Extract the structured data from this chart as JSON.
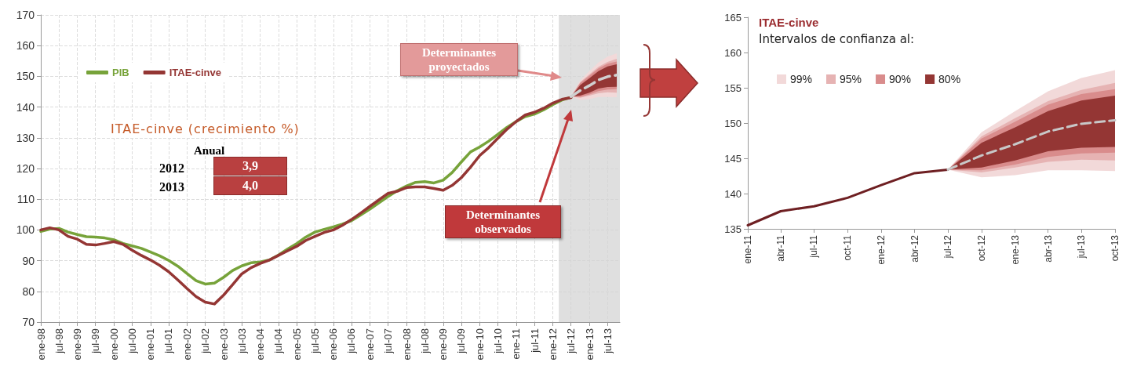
{
  "chart_data": [
    {
      "type": "line",
      "x": [
        "1998-01",
        "1998-04",
        "1998-07",
        "1998-10",
        "1999-01",
        "1999-04",
        "1999-07",
        "1999-10",
        "2000-01",
        "2000-04",
        "2000-07",
        "2000-10",
        "2001-01",
        "2001-04",
        "2001-07",
        "2001-10",
        "2002-01",
        "2002-04",
        "2002-07",
        "2002-10",
        "2003-01",
        "2003-04",
        "2003-07",
        "2003-10",
        "2004-01",
        "2004-04",
        "2004-07",
        "2004-10",
        "2005-01",
        "2005-04",
        "2005-07",
        "2005-10",
        "2006-01",
        "2006-04",
        "2006-07",
        "2006-10",
        "2007-01",
        "2007-04",
        "2007-07",
        "2007-10",
        "2008-01",
        "2008-04",
        "2008-07",
        "2008-10",
        "2009-01",
        "2009-04",
        "2009-07",
        "2009-10",
        "2010-01",
        "2010-04",
        "2010-07",
        "2010-10",
        "2011-01",
        "2011-04",
        "2011-07",
        "2011-10",
        "2012-01",
        "2012-04",
        "2012-07"
      ],
      "series": [
        {
          "name": "PIB",
          "color": "#77a33a",
          "values": [
            99.5,
            100.3,
            100.5,
            99.3,
            98.5,
            97.8,
            97.7,
            97.4,
            96.8,
            95.6,
            94.8,
            94.0,
            92.8,
            91.6,
            90.1,
            88.2,
            85.8,
            83.5,
            82.4,
            82.7,
            84.6,
            86.8,
            88.3,
            89.3,
            89.6,
            90.2,
            91.8,
            93.8,
            95.6,
            97.7,
            99.3,
            100.2,
            101.0,
            101.9,
            103.0,
            104.9,
            106.8,
            108.8,
            110.9,
            112.8,
            114.3,
            115.5,
            115.7,
            115.3,
            116.2,
            118.7,
            122.1,
            125.4,
            127.0,
            128.9,
            131.1,
            133.4,
            135.3,
            136.9,
            137.7,
            139.1,
            140.8,
            142.3,
            143.2
          ]
        },
        {
          "name": "ITAE-cinve",
          "color": "#943634",
          "values": [
            100.0,
            100.7,
            100.0,
            97.9,
            97.0,
            95.3,
            95.1,
            95.6,
            96.2,
            95.3,
            93.4,
            91.7,
            90.2,
            88.5,
            86.4,
            83.7,
            80.9,
            78.3,
            76.5,
            75.9,
            78.8,
            82.2,
            85.7,
            87.7,
            89.1,
            90.2,
            91.7,
            93.2,
            94.7,
            96.6,
            97.9,
            99.2,
            100.0,
            101.5,
            103.4,
            105.5,
            107.7,
            109.8,
            111.9,
            112.6,
            113.8,
            114.0,
            114.0,
            113.5,
            112.9,
            114.5,
            117.0,
            120.4,
            124.2,
            126.8,
            129.8,
            132.8,
            135.3,
            137.4,
            138.3,
            139.6,
            141.3,
            142.5,
            143.1
          ]
        },
        {
          "color": "#f2d9d9",
          "x": [
            "2012-07",
            "2012-10",
            "2013-01",
            "2013-04",
            "2013-07",
            "2013-10"
          ],
          "values": [
            null,
            null,
            null,
            null,
            null,
            null
          ],
          "lower": [
            143.4,
            142.3,
            142.6,
            143.3,
            143.3,
            143.2
          ],
          "upper": [
            143.4,
            148.7,
            151.7,
            154.5,
            156.4,
            157.5
          ]
        },
        {
          "color": "#e6b3b3",
          "x": [
            "2012-07",
            "2012-10",
            "2013-01",
            "2013-04",
            "2013-07",
            "2013-10"
          ],
          "values": [
            null,
            null,
            null,
            null,
            null,
            null
          ],
          "lower": [
            143.4,
            143.0,
            143.7,
            144.5,
            144.8,
            144.7
          ],
          "upper": [
            143.4,
            148.1,
            150.7,
            153.1,
            154.7,
            155.7
          ]
        },
        {
          "color": "#d98c8c",
          "x": [
            "2012-07",
            "2012-10",
            "2013-01",
            "2013-04",
            "2013-07",
            "2013-10"
          ],
          "values": [
            null,
            null,
            null,
            null,
            null,
            null
          ],
          "lower": [
            143.4,
            143.3,
            144.1,
            145.2,
            145.7,
            145.8
          ],
          "upper": [
            143.4,
            147.8,
            150.2,
            152.6,
            154.1,
            154.8
          ]
        },
        {
          "color": "#943634",
          "x": [
            "2012-07",
            "2012-10",
            "2013-01",
            "2013-04",
            "2013-07",
            "2013-10"
          ],
          "values": [
            null,
            null,
            null,
            null,
            null,
            null
          ],
          "lower": [
            143.4,
            143.7,
            144.7,
            146.0,
            146.5,
            146.6
          ],
          "upper": [
            143.4,
            147.2,
            149.4,
            151.7,
            153.2,
            153.9
          ]
        },
        {
          "color": "#d0d0d0",
          "line_style": "dashed",
          "x": [
            "2012-07",
            "2012-10",
            "2013-01",
            "2013-04",
            "2013-07",
            "2013-10"
          ],
          "values": [
            143.4,
            145.4,
            147.0,
            148.8,
            149.9,
            150.4
          ]
        }
      ],
      "xlim": [
        "1998-01",
        "2013-11"
      ],
      "xticks": [
        {
          "value": "1998-01",
          "label": "ene-98"
        },
        {
          "value": "1998-07",
          "label": "jul-98"
        },
        {
          "value": "1999-01",
          "label": "ene-99"
        },
        {
          "value": "1999-07",
          "label": "jul-99"
        },
        {
          "value": "2000-01",
          "label": "ene-00"
        },
        {
          "value": "2000-07",
          "label": "jul-00"
        },
        {
          "value": "2001-01",
          "label": "ene-01"
        },
        {
          "value": "2001-07",
          "label": "jul-01"
        },
        {
          "value": "2002-01",
          "label": "ene-02"
        },
        {
          "value": "2002-07",
          "label": "jul-02"
        },
        {
          "value": "2003-01",
          "label": "ene-03"
        },
        {
          "value": "2003-07",
          "label": "jul-03"
        },
        {
          "value": "2004-01",
          "label": "ene-04"
        },
        {
          "value": "2004-07",
          "label": "jul-04"
        },
        {
          "value": "2005-01",
          "label": "ene-05"
        },
        {
          "value": "2005-07",
          "label": "jul-05"
        },
        {
          "value": "2006-01",
          "label": "ene-06"
        },
        {
          "value": "2006-07",
          "label": "jul-06"
        },
        {
          "value": "2007-01",
          "label": "ene-07"
        },
        {
          "value": "2007-07",
          "label": "jul-07"
        },
        {
          "value": "2008-01",
          "label": "ene-08"
        },
        {
          "value": "2008-07",
          "label": "jul-08"
        },
        {
          "value": "2009-01",
          "label": "ene-09"
        },
        {
          "value": "2009-07",
          "label": "jul-09"
        },
        {
          "value": "2010-01",
          "label": "ene-10"
        },
        {
          "value": "2010-07",
          "label": "jul-10"
        },
        {
          "value": "2011-01",
          "label": "ene-11"
        },
        {
          "value": "2011-07",
          "label": "jul-11"
        },
        {
          "value": "2012-01",
          "label": "ene-12"
        },
        {
          "value": "2012-07",
          "label": "jul-12"
        },
        {
          "value": "2013-01",
          "label": "ene-13"
        },
        {
          "value": "2013-07",
          "label": "jul-13"
        }
      ],
      "ylim": [
        70,
        170
      ],
      "yticks": [
        70,
        80,
        90,
        100,
        110,
        120,
        130,
        140,
        150,
        160,
        170
      ],
      "bands": [
        {
          "axis": "x",
          "from": "2012-03",
          "to": "2013-11",
          "color": "#d4d4d4"
        }
      ],
      "grid": true,
      "legend": "top left",
      "marker": "none",
      "annotations": [
        "ITAE-cinve (crecimiento %)",
        "Anual",
        "2012",
        "3,9",
        "2013",
        "4,0",
        "Determinantes proyectados",
        "Determinantes observados"
      ]
    },
    {
      "type": "line",
      "title": "ITAE-cinve",
      "subtitle": "Intervalos de confianza al:",
      "x": [
        "2011-01",
        "2011-04",
        "2011-07",
        "2011-10",
        "2012-01",
        "2012-04",
        "2012-07"
      ],
      "series": [
        {
          "color": "#6e1f22",
          "values": [
            135.5,
            137.5,
            138.2,
            139.4,
            141.2,
            142.9,
            143.4
          ]
        },
        {
          "name": "99%",
          "color": "#f2d9d9",
          "x": [
            "2012-07",
            "2012-10",
            "2013-01",
            "2013-04",
            "2013-07",
            "2013-10"
          ],
          "values": [
            null,
            null,
            null,
            null,
            null,
            null
          ],
          "lower": [
            143.4,
            142.3,
            142.6,
            143.3,
            143.3,
            143.2
          ],
          "upper": [
            143.4,
            148.7,
            151.7,
            154.5,
            156.4,
            157.5
          ]
        },
        {
          "name": "95%",
          "color": "#e6b3b3",
          "x": [
            "2012-07",
            "2012-10",
            "2013-01",
            "2013-04",
            "2013-07",
            "2013-10"
          ],
          "values": [
            null,
            null,
            null,
            null,
            null,
            null
          ],
          "lower": [
            143.4,
            143.0,
            143.7,
            144.5,
            144.8,
            144.7
          ],
          "upper": [
            143.4,
            148.1,
            150.7,
            153.1,
            154.7,
            155.7
          ]
        },
        {
          "name": "90%",
          "color": "#d98c8c",
          "x": [
            "2012-07",
            "2012-10",
            "2013-01",
            "2013-04",
            "2013-07",
            "2013-10"
          ],
          "values": [
            null,
            null,
            null,
            null,
            null,
            null
          ],
          "lower": [
            143.4,
            143.3,
            144.1,
            145.2,
            145.7,
            145.8
          ],
          "upper": [
            143.4,
            147.8,
            150.2,
            152.6,
            154.1,
            154.8
          ]
        },
        {
          "name": "80%",
          "color": "#943634",
          "x": [
            "2012-07",
            "2012-10",
            "2013-01",
            "2013-04",
            "2013-07",
            "2013-10"
          ],
          "values": [
            null,
            null,
            null,
            null,
            null,
            null
          ],
          "lower": [
            143.4,
            143.7,
            144.7,
            146.0,
            146.5,
            146.6
          ],
          "upper": [
            143.4,
            147.2,
            149.4,
            151.7,
            153.2,
            153.9
          ]
        },
        {
          "color": "#c8c8c8",
          "line_style": "dashed",
          "x": [
            "2012-07",
            "2012-10",
            "2013-01",
            "2013-04",
            "2013-07",
            "2013-10"
          ],
          "values": [
            143.4,
            145.4,
            147.0,
            148.8,
            149.9,
            150.4
          ]
        }
      ],
      "xlim": [
        "2011-01",
        "2013-10"
      ],
      "xticks": [
        {
          "value": "2011-01",
          "label": "ene-11"
        },
        {
          "value": "2011-04",
          "label": "abr-11"
        },
        {
          "value": "2011-07",
          "label": "jul-11"
        },
        {
          "value": "2011-10",
          "label": "oct-11"
        },
        {
          "value": "2012-01",
          "label": "ene-12"
        },
        {
          "value": "2012-04",
          "label": "abr-12"
        },
        {
          "value": "2012-07",
          "label": "jul-12"
        },
        {
          "value": "2012-10",
          "label": "oct-12"
        },
        {
          "value": "2013-01",
          "label": "ene-13"
        },
        {
          "value": "2013-04",
          "label": "abr-13"
        },
        {
          "value": "2013-07",
          "label": "jul-13"
        },
        {
          "value": "2013-10",
          "label": "oct-13"
        }
      ],
      "ylim": [
        135,
        165
      ],
      "yticks": [
        135,
        140,
        145,
        150,
        155,
        160,
        165
      ],
      "grid": false,
      "legend": "top left",
      "marker": "none"
    }
  ]
}
